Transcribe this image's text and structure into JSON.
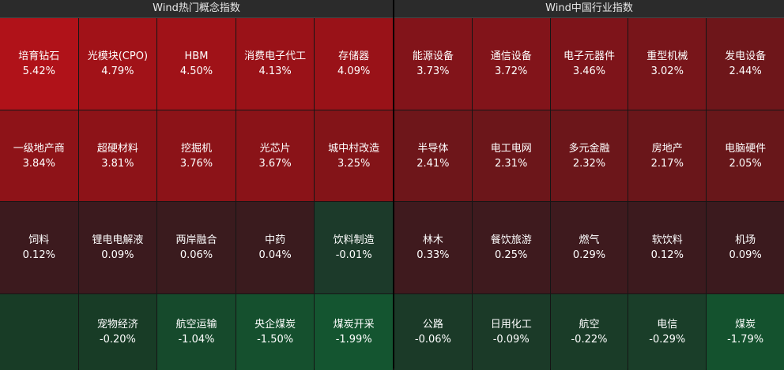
{
  "left_panel": {
    "title": "Wind热门概念指数",
    "cells": [
      {
        "name": "培育钻石",
        "pct": "5.42%",
        "color": "#b01219"
      },
      {
        "name": "光模块(CPO)",
        "pct": "4.79%",
        "color": "#a11218"
      },
      {
        "name": "HBM",
        "pct": "4.50%",
        "color": "#a01218"
      },
      {
        "name": "消费电子代工",
        "pct": "4.13%",
        "color": "#9a1218"
      },
      {
        "name": "存储器",
        "pct": "4.09%",
        "color": "#991218"
      },
      {
        "name": "一级地产商",
        "pct": "3.84%",
        "color": "#8e1318"
      },
      {
        "name": "超硬材料",
        "pct": "3.81%",
        "color": "#8d1318"
      },
      {
        "name": "挖掘机",
        "pct": "3.76%",
        "color": "#8c1318"
      },
      {
        "name": "光芯片",
        "pct": "3.67%",
        "color": "#8a1318"
      },
      {
        "name": "城中村改造",
        "pct": "3.25%",
        "color": "#831418"
      },
      {
        "name": "饲料",
        "pct": "0.12%",
        "color": "#3c1a1e"
      },
      {
        "name": "锂电电解液",
        "pct": "0.09%",
        "color": "#3b1a1e"
      },
      {
        "name": "两岸融合",
        "pct": "0.06%",
        "color": "#3a1b1e"
      },
      {
        "name": "中药",
        "pct": "0.04%",
        "color": "#3a1b1e"
      },
      {
        "name": "饮料制造",
        "pct": "-0.01%",
        "color": "#1c3a2a"
      },
      {
        "name": "",
        "pct": "",
        "color": "#183c26"
      },
      {
        "name": "宠物经济",
        "pct": "-0.20%",
        "color": "#183c26"
      },
      {
        "name": "航空运输",
        "pct": "-1.04%",
        "color": "#164a2c"
      },
      {
        "name": "央企煤炭",
        "pct": "-1.50%",
        "color": "#15502e"
      },
      {
        "name": "煤炭开采",
        "pct": "-1.99%",
        "color": "#145530"
      }
    ]
  },
  "right_panel": {
    "title": "Wind中国行业指数",
    "cells": [
      {
        "name": "能源设备",
        "pct": "3.73%",
        "color": "#82141a"
      },
      {
        "name": "通信设备",
        "pct": "3.72%",
        "color": "#82141a"
      },
      {
        "name": "电子元器件",
        "pct": "3.46%",
        "color": "#7e141a"
      },
      {
        "name": "重型机械",
        "pct": "3.02%",
        "color": "#78151a"
      },
      {
        "name": "发电设备",
        "pct": "2.44%",
        "color": "#6e161a"
      },
      {
        "name": "半导体",
        "pct": "2.41%",
        "color": "#6e161a"
      },
      {
        "name": "电工电网",
        "pct": "2.31%",
        "color": "#6c161a"
      },
      {
        "name": "多元金融",
        "pct": "2.32%",
        "color": "#6c161a"
      },
      {
        "name": "房地产",
        "pct": "2.17%",
        "color": "#6a161a"
      },
      {
        "name": "电脑硬件",
        "pct": "2.05%",
        "color": "#68171a"
      },
      {
        "name": "林木",
        "pct": "0.33%",
        "color": "#3f1a1e"
      },
      {
        "name": "餐饮旅游",
        "pct": "0.25%",
        "color": "#3e1a1e"
      },
      {
        "name": "燃气",
        "pct": "0.29%",
        "color": "#3e1a1e"
      },
      {
        "name": "软饮料",
        "pct": "0.12%",
        "color": "#3c1a1e"
      },
      {
        "name": "机场",
        "pct": "0.09%",
        "color": "#3b1a1e"
      },
      {
        "name": "公路",
        "pct": "-0.06%",
        "color": "#1b3a28"
      },
      {
        "name": "日用化工",
        "pct": "-0.09%",
        "color": "#1b3a28"
      },
      {
        "name": "航空",
        "pct": "-0.22%",
        "color": "#1a3c28"
      },
      {
        "name": "电信",
        "pct": "-0.29%",
        "color": "#1a3e29"
      },
      {
        "name": "煤炭",
        "pct": "-1.79%",
        "color": "#14522e"
      }
    ]
  }
}
